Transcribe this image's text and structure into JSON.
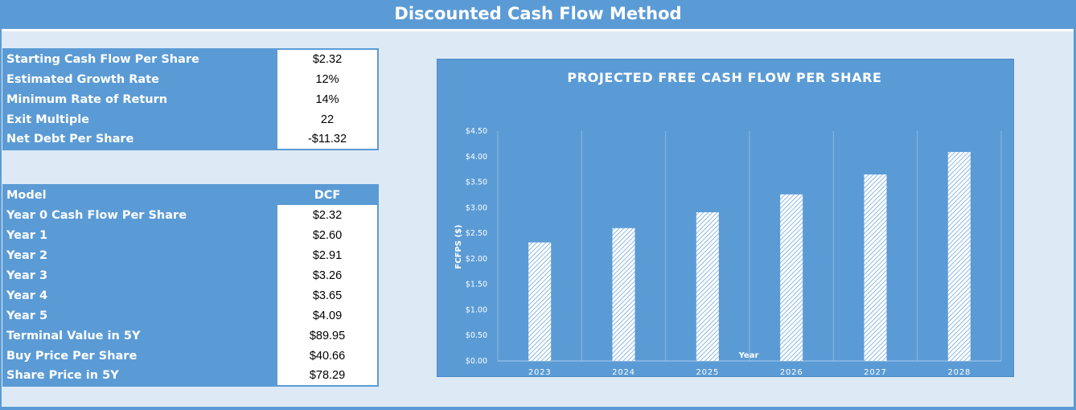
{
  "title": "Discounted Cash Flow Method",
  "inputs": [
    {
      "label": "Starting Cash Flow Per Share",
      "value": "$2.32"
    },
    {
      "label": "Estimated Growth Rate",
      "value": "12%"
    },
    {
      "label": "Minimum Rate of Return",
      "value": "14%"
    },
    {
      "label": "Exit Multiple",
      "value": "22"
    },
    {
      "label": "Net Debt Per Share",
      "value": "-$11.32"
    }
  ],
  "model": {
    "header_label": "Model",
    "header_value": "DCF",
    "rows": [
      {
        "label": "Year 0 Cash Flow Per Share",
        "value": "$2.32"
      },
      {
        "label": "Year 1",
        "value": "$2.60"
      },
      {
        "label": "Year 2",
        "value": "$2.91"
      },
      {
        "label": "Year 3",
        "value": "$3.26"
      },
      {
        "label": "Year 4",
        "value": "$3.65"
      },
      {
        "label": "Year 5",
        "value": "$4.09"
      },
      {
        "label": "Terminal Value in 5Y",
        "value": "$89.95"
      },
      {
        "label": "Buy Price Per Share",
        "value": "$40.66"
      },
      {
        "label": "Share Price in 5Y",
        "value": "$78.29"
      }
    ]
  },
  "chart_data": {
    "type": "bar",
    "title": "PROJECTED FREE CASH FLOW PER SHARE",
    "xlabel": "Year",
    "ylabel": "FCFPS ($)",
    "categories": [
      "2023",
      "2024",
      "2025",
      "2026",
      "2027",
      "2028"
    ],
    "values": [
      2.32,
      2.6,
      2.91,
      3.26,
      3.65,
      4.09
    ],
    "ylim": [
      0,
      4.5
    ],
    "yticks": [
      "$0.00",
      "$0.50",
      "$1.00",
      "$1.50",
      "$2.00",
      "$2.50",
      "$3.00",
      "$3.50",
      "$4.00",
      "$4.50"
    ],
    "grid": "vertical",
    "colors": {
      "background": "#5b9bd5",
      "bar_fill": "#ffffff",
      "bar_hatch": "#5b9bd5"
    }
  }
}
